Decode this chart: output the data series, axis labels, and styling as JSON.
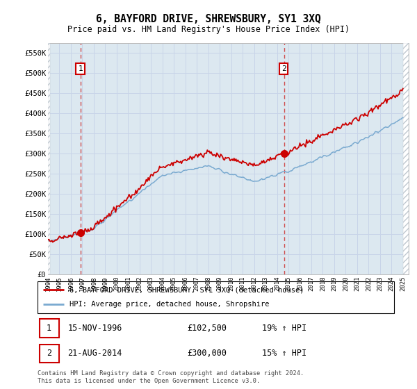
{
  "title": "6, BAYFORD DRIVE, SHREWSBURY, SY1 3XQ",
  "subtitle": "Price paid vs. HM Land Registry's House Price Index (HPI)",
  "ylim": [
    0,
    575000
  ],
  "yticks": [
    0,
    50000,
    100000,
    150000,
    200000,
    250000,
    300000,
    350000,
    400000,
    450000,
    500000,
    550000
  ],
  "ytick_labels": [
    "£0",
    "£50K",
    "£100K",
    "£150K",
    "£200K",
    "£250K",
    "£300K",
    "£350K",
    "£400K",
    "£450K",
    "£500K",
    "£550K"
  ],
  "xmin": 1994,
  "xmax": 2025.5,
  "sale1_x": 1996.88,
  "sale1_y": 102500,
  "sale2_x": 2014.63,
  "sale2_y": 300000,
  "red_line_color": "#cc0000",
  "blue_line_color": "#7aaad0",
  "legend_label_red": "6, BAYFORD DRIVE, SHREWSBURY, SY1 3XQ (detached house)",
  "legend_label_blue": "HPI: Average price, detached house, Shropshire",
  "table_row1": [
    "1",
    "15-NOV-1996",
    "£102,500",
    "19% ↑ HPI"
  ],
  "table_row2": [
    "2",
    "21-AUG-2014",
    "£300,000",
    "15% ↑ HPI"
  ],
  "footnote": "Contains HM Land Registry data © Crown copyright and database right 2024.\nThis data is licensed under the Open Government Licence v3.0.",
  "grid_color": "#c8d4e8",
  "plot_bg_color": "#dce8f0",
  "hatch_color": "#c0c8d0"
}
